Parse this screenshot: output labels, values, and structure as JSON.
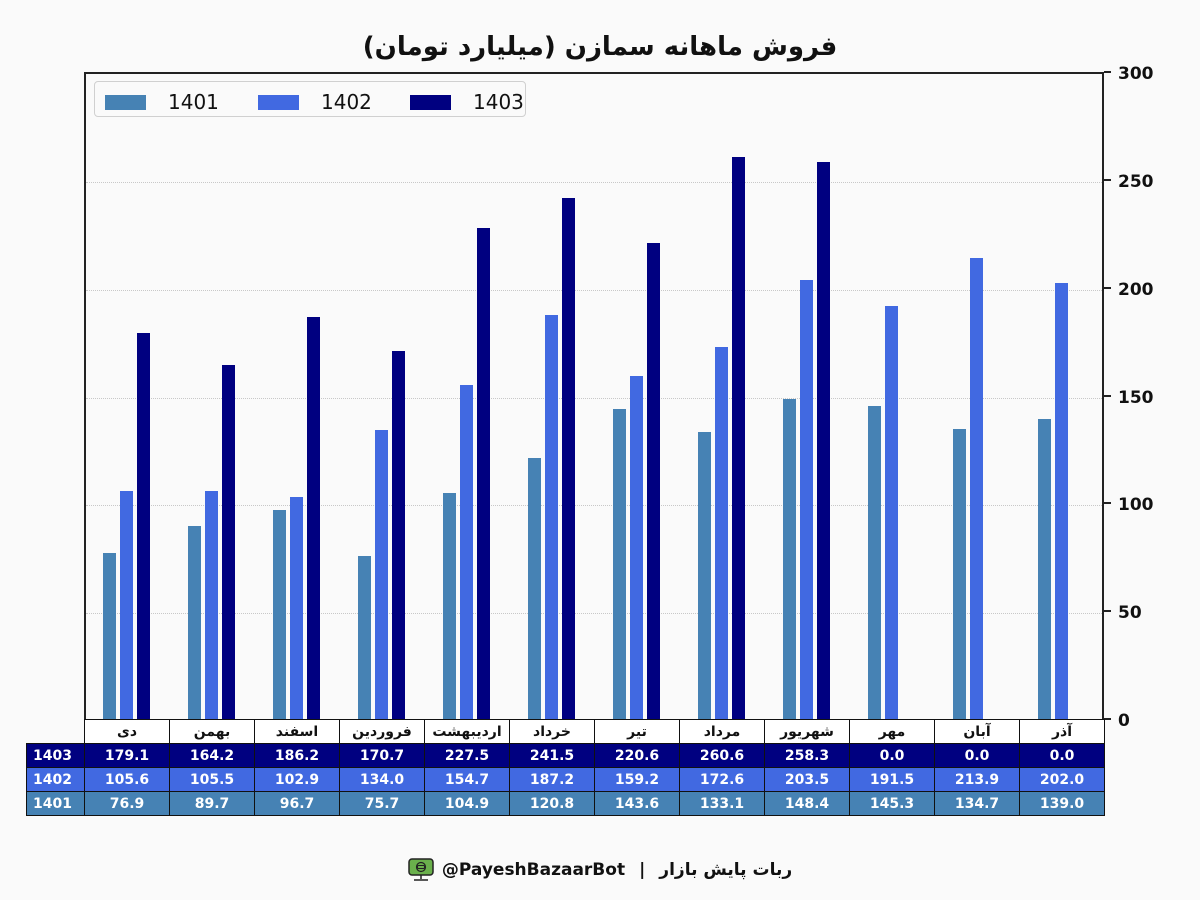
{
  "chart_data": {
    "type": "bar",
    "title": "فروش ماهانه سمازن (میلیارد تومان)",
    "xlabel": "",
    "ylabel": "",
    "ylim": [
      0,
      300
    ],
    "yticks": [
      0,
      50,
      100,
      150,
      200,
      250,
      300
    ],
    "y_axis_position": "right",
    "grid": "horizontal dotted",
    "legend_position": "upper left",
    "categories": [
      "دی",
      "بهمن",
      "اسفند",
      "فروردین",
      "اردیبهشت",
      "خرداد",
      "تیر",
      "مرداد",
      "شهریور",
      "مهر",
      "آبان",
      "آذر"
    ],
    "series": [
      {
        "name": "1401",
        "color": "#4682b4",
        "values": [
          76.9,
          89.7,
          96.7,
          75.7,
          104.9,
          120.8,
          143.6,
          133.1,
          148.4,
          145.3,
          134.7,
          139.0
        ]
      },
      {
        "name": "1402",
        "color": "#4169e1",
        "values": [
          105.6,
          105.5,
          102.9,
          134.0,
          154.7,
          187.2,
          159.2,
          172.6,
          203.5,
          191.5,
          213.9,
          202.0
        ]
      },
      {
        "name": "1403",
        "color": "#000080",
        "values": [
          179.1,
          164.2,
          186.2,
          170.7,
          227.5,
          241.5,
          220.6,
          260.6,
          258.3,
          0.0,
          0.0,
          0.0
        ]
      }
    ],
    "table": {
      "row_order": [
        "1403",
        "1402",
        "1401"
      ],
      "rows": [
        {
          "label": "1403",
          "values": [
            "179.1",
            "164.2",
            "186.2",
            "170.7",
            "227.5",
            "241.5",
            "220.6",
            "260.6",
            "258.3",
            "0.0",
            "0.0",
            "0.0"
          ]
        },
        {
          "label": "1402",
          "values": [
            "105.6",
            "105.5",
            "102.9",
            "134.0",
            "154.7",
            "187.2",
            "159.2",
            "172.6",
            "203.5",
            "191.5",
            "213.9",
            "202.0"
          ]
        },
        {
          "label": "1401",
          "values": [
            "76.9",
            "89.7",
            "96.7",
            "75.7",
            "104.9",
            "120.8",
            "143.6",
            "133.1",
            "148.4",
            "145.3",
            "134.7",
            "139.0"
          ]
        }
      ]
    }
  },
  "footer": {
    "handle": "@PayeshBazaarBot",
    "separator": "|",
    "bot_name": "ربات پایش بازار",
    "icon": "monitor-robot-icon"
  }
}
